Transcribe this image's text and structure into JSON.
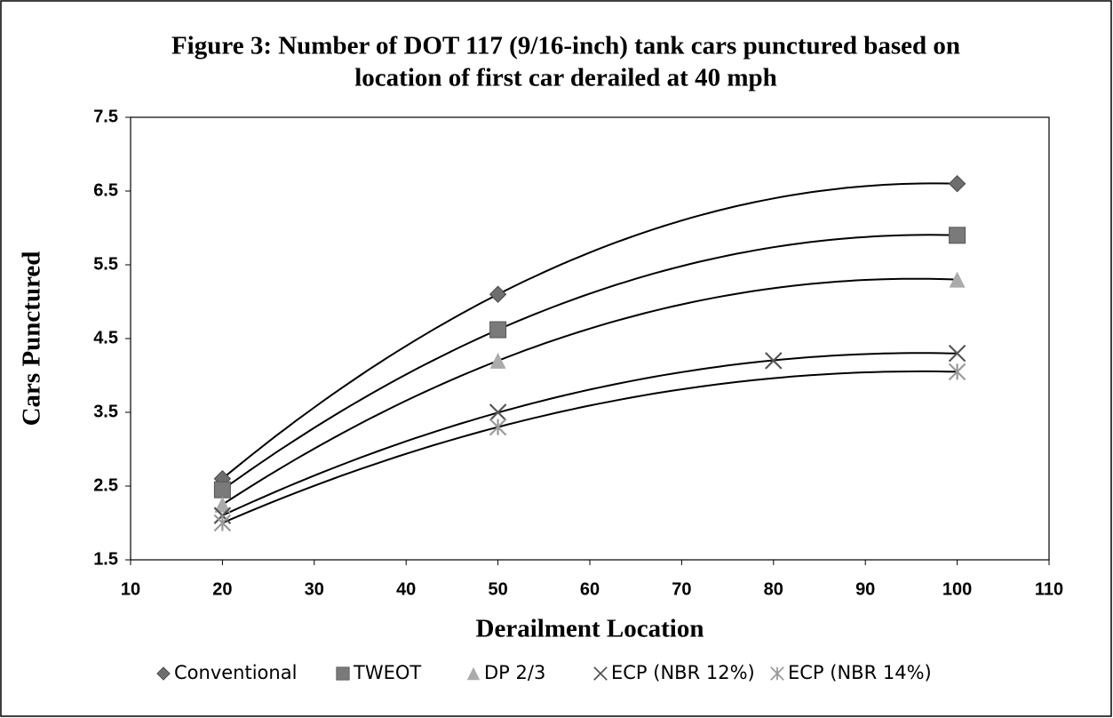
{
  "chart_data": {
    "type": "scatter",
    "title": [
      "Figure 3: Number of DOT 117 (9/16-inch) tank cars punctured based on",
      "location of first car derailed at 40 mph"
    ],
    "xlabel": "Derailment Location",
    "ylabel": "Cars Punctured",
    "xlim": [
      10,
      110
    ],
    "xticks": [
      10,
      20,
      30,
      40,
      50,
      60,
      70,
      80,
      90,
      100,
      110
    ],
    "ylim": [
      1.5,
      7.5
    ],
    "yticks": [
      1.5,
      2.5,
      3.5,
      4.5,
      5.5,
      6.5,
      7.5
    ],
    "trendline": "polynomial",
    "series": [
      {
        "name": "Conventional",
        "marker": "diamond",
        "color": "#6e6e6e",
        "x": [
          20,
          50,
          100
        ],
        "values": [
          2.6,
          5.1,
          6.6
        ]
      },
      {
        "name": "TWEOT",
        "marker": "square",
        "color": "#7a7a7a",
        "x": [
          20,
          50,
          100
        ],
        "values": [
          2.45,
          4.62,
          5.9
        ]
      },
      {
        "name": "DP 2/3",
        "marker": "triangle",
        "color": "#ababab",
        "x": [
          20,
          50,
          100
        ],
        "values": [
          2.25,
          4.2,
          5.3
        ]
      },
      {
        "name": "ECP (NBR 12%)",
        "marker": "x",
        "color": "#555555",
        "x": [
          20,
          50,
          80,
          100
        ],
        "values": [
          2.1,
          3.5,
          4.2,
          4.3
        ]
      },
      {
        "name": "ECP (NBR 14%)",
        "marker": "star",
        "color": "#9a9a9a",
        "x": [
          20,
          50,
          100
        ],
        "values": [
          2.0,
          3.3,
          4.05
        ]
      }
    ]
  }
}
